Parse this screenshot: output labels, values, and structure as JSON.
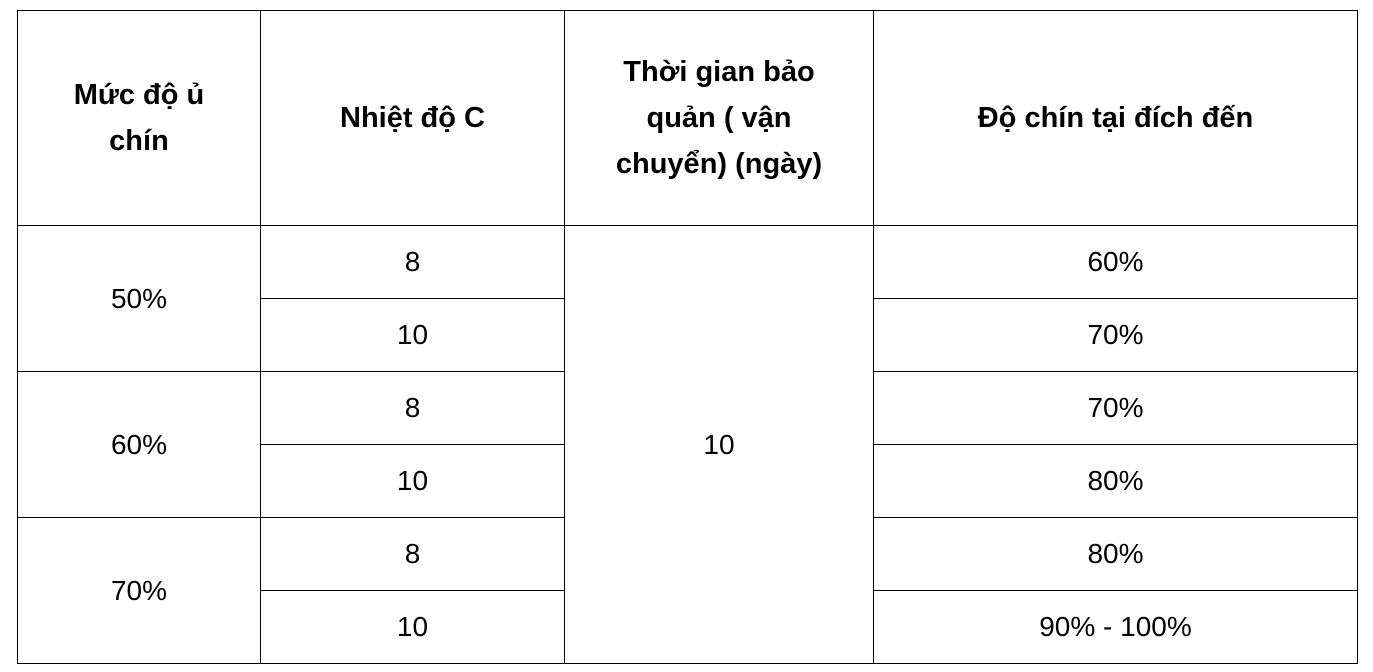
{
  "table": {
    "headers": [
      "Mức độ ủ chín",
      "Nhiệt độ C",
      "Thời gian bảo quản ( vận chuyển) (ngày)",
      "Độ chín tại đích đến"
    ],
    "header_lines": {
      "col0": [
        "Mức độ ủ",
        "chín"
      ],
      "col2": [
        "Thời gian bảo",
        "quản ( vận",
        "chuyển) (ngày)"
      ]
    },
    "storage_days": "10",
    "groups": [
      {
        "ripeness": "50%",
        "rows": [
          {
            "temp": "8",
            "result": "60%"
          },
          {
            "temp": "10",
            "result": "70%"
          }
        ]
      },
      {
        "ripeness": "60%",
        "rows": [
          {
            "temp": "8",
            "result": "70%"
          },
          {
            "temp": "10",
            "result": "80%"
          }
        ]
      },
      {
        "ripeness": "70%",
        "rows": [
          {
            "temp": "8",
            "result": "80%"
          },
          {
            "temp": "10",
            "result": "90% - 100%"
          }
        ]
      }
    ]
  }
}
